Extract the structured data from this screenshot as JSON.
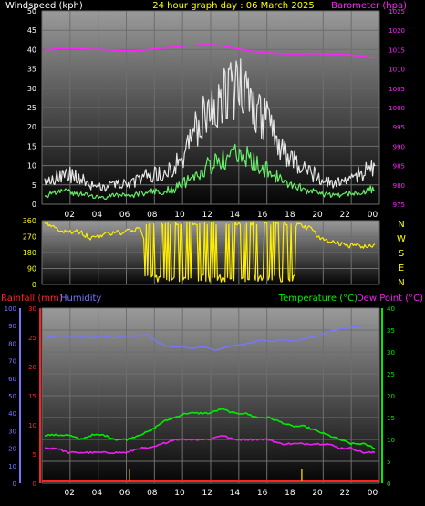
{
  "colors": {
    "background": "#000000",
    "gust": "#e6e6e6",
    "avg_wind": "#66ee66",
    "barometer": "#ff22ff",
    "direction": "#ffee00",
    "humidity": "#7777ff",
    "temperature": "#00ee00",
    "dew_point": "#ee22ee",
    "rainfall": "#ff2222",
    "rain_rate": "#ddbb00"
  },
  "header": {
    "left": "Windspeed (kph)",
    "center": "24 hour graph day : 06 March 2025",
    "right": "Barometer (hpa)"
  },
  "time_ticks": [
    "02",
    "04",
    "06",
    "08",
    "10",
    "12",
    "14",
    "16",
    "18",
    "20",
    "22",
    "00"
  ],
  "compass": [
    "N",
    "W",
    "S",
    "E",
    "N"
  ],
  "lower_header": {
    "rainfall": "Rainfall (mm)",
    "humidity": "Humidity",
    "temperature": "Temperature (°C)",
    "dew_point": "Dew Point (°C)"
  },
  "chart_data": [
    {
      "type": "line",
      "xlabel": "",
      "ylabel": "Windspeed (kph)",
      "y2label": "Barometer (hpa)",
      "x_ticks": [
        "02",
        "04",
        "06",
        "08",
        "10",
        "12",
        "14",
        "16",
        "18",
        "20",
        "22",
        "00"
      ],
      "ylim": [
        0,
        50
      ],
      "y_ticks": [
        0,
        5,
        10,
        15,
        20,
        25,
        30,
        35,
        40,
        45,
        50
      ],
      "y2lim": [
        975,
        1025
      ],
      "y2_ticks": [
        975,
        980,
        985,
        990,
        995,
        1000,
        1005,
        1010,
        1015,
        1020,
        1025
      ],
      "series": [
        {
          "name": "Windspeed (kph)",
          "values": [
            5,
            6,
            7,
            7,
            6,
            5,
            4,
            4,
            5,
            5,
            5,
            6,
            7,
            7,
            8,
            9,
            12,
            16,
            20,
            22,
            24,
            26,
            28,
            27,
            24,
            21,
            18,
            14,
            12,
            10,
            8,
            7,
            6,
            5,
            5,
            6,
            7,
            8,
            9
          ]
        },
        {
          "name": "Barometer (hpa)",
          "values": [
            1014.8,
            1015.3,
            1015.3,
            1015.1,
            1015.0,
            1014.8,
            1014.6,
            1014.9,
            1015.3,
            1015.6,
            1016.0,
            1016.3,
            1016.2,
            1015.5,
            1014.8,
            1014.3,
            1014.0,
            1013.9,
            1013.9,
            1014.0,
            1013.8,
            1013.7,
            1013.4,
            1012.8
          ]
        }
      ]
    },
    {
      "type": "line",
      "ylabel": "Wind direction",
      "ylim": [
        0,
        360
      ],
      "y_ticks": [
        0,
        90,
        180,
        270,
        360
      ],
      "series": [
        {
          "name": "Wind direction",
          "values": [
            340,
            330,
            300,
            300,
            290,
            260,
            280,
            290,
            290,
            300,
            320,
            200,
            180,
            150,
            200,
            300,
            160,
            270,
            150,
            200,
            120,
            190,
            90,
            150,
            260,
            30,
            340,
            330,
            320,
            270,
            250,
            230,
            220,
            220,
            210,
            215
          ]
        }
      ]
    },
    {
      "type": "line",
      "ylabel": "Rainfall (mm)",
      "ylim": [
        0,
        30
      ],
      "y_ticks": [
        0,
        5,
        10,
        15,
        20,
        25,
        30
      ],
      "humidity_ylim": [
        0,
        100
      ],
      "humidity_ticks": [
        0,
        10,
        20,
        30,
        40,
        50,
        60,
        70,
        80,
        90,
        100
      ],
      "y2label": "Temperature (°C)",
      "y2lim": [
        0,
        40
      ],
      "y2_ticks": [
        0,
        5,
        10,
        15,
        20,
        25,
        30,
        35,
        40
      ],
      "series": [
        {
          "name": "Humidity",
          "values": [
            83,
            84,
            84,
            84,
            83,
            84,
            83,
            84,
            84,
            85,
            80,
            78,
            78,
            77,
            78,
            76,
            78,
            79,
            80,
            82,
            81,
            82,
            81,
            83,
            84,
            87,
            88,
            89,
            90,
            90
          ]
        },
        {
          "name": "Temperature (°C)",
          "values": [
            11,
            11,
            11,
            10,
            11,
            11,
            10,
            10,
            11,
            12,
            14,
            15,
            16,
            16,
            16,
            17,
            16,
            16,
            15,
            15,
            14,
            13,
            13,
            12,
            11,
            10,
            9,
            9,
            8
          ]
        },
        {
          "name": "Dew Point (°C)",
          "values": [
            8,
            8,
            7,
            7,
            7,
            7,
            7,
            7,
            8,
            8,
            9,
            10,
            10,
            10,
            10,
            11,
            10,
            10,
            10,
            10,
            9,
            9,
            9,
            9,
            9,
            8,
            8,
            7,
            7
          ]
        },
        {
          "name": "Rainfall (mm)",
          "values": [
            0,
            0,
            0,
            0,
            0,
            0,
            0,
            0,
            0,
            0,
            0,
            0,
            0,
            0,
            0,
            0,
            0,
            0,
            0,
            0,
            0,
            0,
            0,
            0
          ]
        }
      ]
    }
  ]
}
